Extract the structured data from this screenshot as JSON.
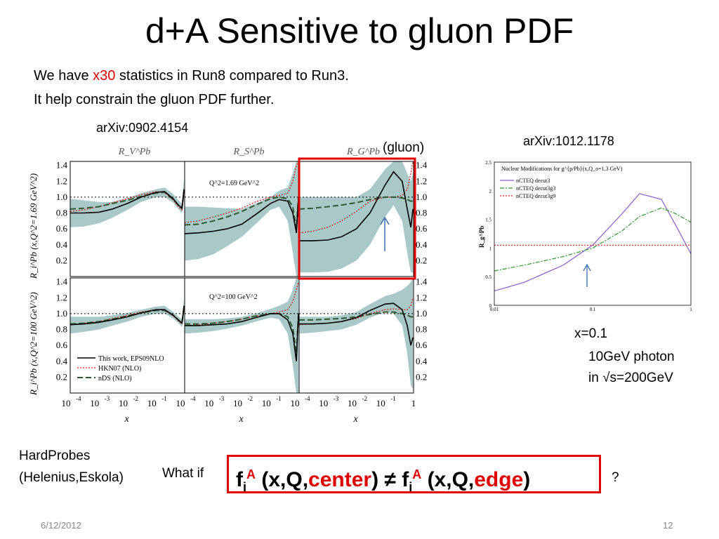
{
  "slide": {
    "title": "d+A Sensitive to gluon PDF",
    "line1_pre": "We have ",
    "line1_red": "x30",
    "line1_post": " statistics in Run8 compared to Run3.",
    "line2": "It help constrain the gluon PDF further.",
    "ref_left": "arXiv:0902.4154",
    "ref_right": "arXiv:1012.1178",
    "gluon_label": "(gluon)",
    "x_label": "x=0.1",
    "photon_line1": "10GeV photon",
    "photon_line2": "in √s=200GeV",
    "hardprobes1": "HardProbes",
    "hardprobes2": "(Helenius,Eskola)",
    "what_if": "What if",
    "question": "?",
    "formula": {
      "f": "f",
      "sub": "i",
      "sup": "A",
      "open": " (x,Q,",
      "center": "center",
      "close": ")",
      "neq": " ≠ ",
      "open2": " (x,Q,",
      "edge": "edge",
      "close2": ")"
    },
    "date": "6/12/2012",
    "page": "12"
  },
  "colors": {
    "accent_red": "#e00000",
    "band": "#a9c9c9",
    "arrow": "#3b6fb0"
  },
  "chart_data": [
    {
      "type": "line",
      "panel_titles": [
        "R_V^Pb",
        "R_S^Pb",
        "R_G^Pb"
      ],
      "row_ylabels": [
        "R_i^Pb (x,Q^2=1.69 GeV^2)",
        "R_i^Pb (x,Q^2=100 GeV^2)"
      ],
      "row_annotations": [
        "Q^2=1.69 GeV^2",
        "Q^2=100 GeV^2"
      ],
      "xlabel": "x",
      "x_scale": "log",
      "xlim": [
        0.0001,
        1
      ],
      "ylim": [
        0,
        1.45
      ],
      "y_ticks": [
        "1.4",
        "1.2",
        "1.0",
        "0.8",
        "0.6",
        "0.4",
        "0.2"
      ],
      "x_ticks_exp": [
        "-4",
        "-3",
        "-2",
        "-1"
      ],
      "x_last_tick": "1",
      "tick_base": "10",
      "legend": [
        "This work, EPS09NLO",
        "HKN07 (NLO)",
        "nDS (NLO)"
      ],
      "legend_position": "bottom-left",
      "x": [
        0.0001,
        0.0003,
        0.001,
        0.003,
        0.01,
        0.03,
        0.1,
        0.2,
        0.4,
        0.6,
        0.8,
        0.95
      ],
      "panels": [
        {
          "name": "V 1.69",
          "eps": [
            0.8,
            0.8,
            0.81,
            0.85,
            0.92,
            1.0,
            1.06,
            1.07,
            0.98,
            0.9,
            0.86,
            1.1
          ],
          "hkn": [
            0.82,
            0.84,
            0.88,
            0.93,
            0.98,
            1.03,
            1.07,
            1.06,
            0.96,
            0.88,
            0.84,
            1.05
          ],
          "nds": [
            0.85,
            0.86,
            0.88,
            0.92,
            0.96,
            1.01,
            1.05,
            1.06,
            0.97,
            0.9,
            0.86,
            1.08
          ],
          "band_lo": [
            0.62,
            0.63,
            0.67,
            0.74,
            0.84,
            0.94,
            1.0,
            1.0,
            0.93,
            0.85,
            0.8,
            0.95
          ],
          "band_hi": [
            0.98,
            0.96,
            0.94,
            0.94,
            0.99,
            1.05,
            1.1,
            1.12,
            1.04,
            0.96,
            0.92,
            1.25
          ]
        },
        {
          "name": "S 1.69",
          "eps": [
            0.54,
            0.55,
            0.57,
            0.6,
            0.66,
            0.78,
            0.92,
            0.97,
            0.95,
            0.8,
            0.55,
            1.0
          ],
          "hkn": [
            0.68,
            0.7,
            0.75,
            0.8,
            0.86,
            0.94,
            1.0,
            1.02,
            1.05,
            1.2,
            1.4,
            1.45
          ],
          "nds": [
            0.65,
            0.66,
            0.7,
            0.75,
            0.82,
            0.9,
            0.98,
            1.0,
            0.98,
            0.88,
            0.6,
            1.0
          ],
          "band_lo": [
            0.2,
            0.22,
            0.28,
            0.38,
            0.5,
            0.66,
            0.84,
            0.88,
            0.7,
            0.3,
            0.0,
            0.0
          ],
          "band_hi": [
            0.88,
            0.88,
            0.87,
            0.86,
            0.85,
            0.92,
            1.0,
            1.08,
            1.12,
            1.3,
            1.45,
            1.45
          ]
        },
        {
          "name": "G 1.69",
          "eps": [
            0.45,
            0.45,
            0.46,
            0.5,
            0.6,
            0.8,
            1.15,
            1.32,
            1.2,
            0.85,
            0.62,
            0.85
          ],
          "hkn": [
            0.55,
            0.57,
            0.62,
            0.7,
            0.82,
            0.95,
            1.0,
            1.0,
            1.02,
            1.1,
            1.3,
            1.45
          ],
          "nds": [
            0.85,
            0.86,
            0.88,
            0.9,
            0.93,
            0.97,
            1.0,
            1.0,
            0.99,
            0.97,
            0.95,
            0.95
          ],
          "band_lo": [
            0.05,
            0.05,
            0.06,
            0.1,
            0.2,
            0.4,
            0.75,
            0.9,
            0.7,
            0.3,
            0.05,
            0.05
          ],
          "band_hi": [
            1.0,
            1.0,
            1.0,
            1.0,
            1.0,
            1.1,
            1.35,
            1.45,
            1.45,
            1.3,
            1.2,
            1.3
          ]
        },
        {
          "name": "V 100",
          "eps": [
            0.86,
            0.87,
            0.89,
            0.92,
            0.96,
            1.01,
            1.05,
            1.05,
            0.98,
            0.92,
            0.88,
            1.1
          ],
          "hkn": [
            0.86,
            0.88,
            0.9,
            0.94,
            0.98,
            1.02,
            1.05,
            1.04,
            0.97,
            0.91,
            0.87,
            1.05
          ],
          "nds": [
            0.87,
            0.88,
            0.9,
            0.93,
            0.97,
            1.01,
            1.04,
            1.04,
            0.98,
            0.92,
            0.88,
            1.08
          ],
          "band_lo": [
            0.75,
            0.77,
            0.8,
            0.85,
            0.9,
            0.96,
            1.0,
            1.0,
            0.94,
            0.88,
            0.83,
            0.95
          ],
          "band_hi": [
            0.96,
            0.96,
            0.96,
            0.98,
            1.01,
            1.05,
            1.09,
            1.1,
            1.02,
            0.96,
            0.93,
            1.2
          ]
        },
        {
          "name": "S 100",
          "eps": [
            0.85,
            0.85,
            0.86,
            0.87,
            0.9,
            0.95,
            1.0,
            1.0,
            0.92,
            0.75,
            0.4,
            1.0
          ],
          "hkn": [
            0.85,
            0.86,
            0.88,
            0.9,
            0.93,
            0.97,
            1.0,
            1.02,
            1.05,
            1.15,
            1.3,
            1.4
          ],
          "nds": [
            0.87,
            0.87,
            0.88,
            0.9,
            0.93,
            0.97,
            1.0,
            1.0,
            0.96,
            0.82,
            0.5,
            1.0
          ],
          "band_lo": [
            0.75,
            0.76,
            0.78,
            0.81,
            0.85,
            0.9,
            0.95,
            0.93,
            0.75,
            0.35,
            0.0,
            0.0
          ],
          "band_hi": [
            0.93,
            0.93,
            0.93,
            0.94,
            0.96,
            1.0,
            1.06,
            1.1,
            1.15,
            1.3,
            1.45,
            1.45
          ]
        },
        {
          "name": "G 100",
          "eps": [
            0.87,
            0.87,
            0.88,
            0.9,
            0.95,
            1.04,
            1.12,
            1.13,
            1.05,
            0.85,
            0.6,
            0.7
          ],
          "hkn": [
            0.86,
            0.87,
            0.88,
            0.9,
            0.94,
            1.0,
            1.05,
            1.06,
            1.05,
            1.05,
            1.1,
            1.2
          ],
          "nds": [
            0.92,
            0.92,
            0.93,
            0.94,
            0.96,
            0.99,
            1.02,
            1.02,
            1.0,
            0.98,
            0.96,
            0.96
          ],
          "band_lo": [
            0.75,
            0.76,
            0.78,
            0.8,
            0.86,
            0.95,
            1.02,
            1.0,
            0.85,
            0.5,
            0.1,
            0.05
          ],
          "band_hi": [
            0.96,
            0.96,
            0.96,
            0.98,
            1.02,
            1.12,
            1.22,
            1.25,
            1.3,
            1.35,
            1.4,
            1.45
          ]
        }
      ]
    },
    {
      "type": "line",
      "title": "Nuclear Modifications for g^{p/Pb}(x,Q_o=1.3 GeV)",
      "xlabel": "x",
      "ylabel": "R_g^Pb",
      "x_scale": "log",
      "xlim": [
        0.01,
        1
      ],
      "ylim": [
        0,
        2.5
      ],
      "y_ticks": [
        "2.5",
        "2",
        "1.5",
        "1",
        "0.5",
        "0"
      ],
      "x_ticks": [
        "0.01",
        "0.1",
        "1"
      ],
      "legend": [
        "nCTEQ decut3",
        "nCTEQ decut3g3",
        "nCTEQ decut3g9"
      ],
      "legend_position": "top-left",
      "x": [
        0.01,
        0.02,
        0.05,
        0.1,
        0.2,
        0.3,
        0.5,
        0.7,
        1.0
      ],
      "series": [
        {
          "name": "nCTEQ decut3",
          "values": [
            0.25,
            0.4,
            0.7,
            1.05,
            1.6,
            1.95,
            1.85,
            1.4,
            0.9
          ]
        },
        {
          "name": "nCTEQ decut3g3",
          "values": [
            0.6,
            0.7,
            0.85,
            1.0,
            1.3,
            1.55,
            1.7,
            1.6,
            1.45
          ]
        },
        {
          "name": "nCTEQ decut3g9",
          "values": [
            1.05,
            1.05,
            1.05,
            1.05,
            1.05,
            1.05,
            1.05,
            1.05,
            1.05
          ]
        }
      ]
    }
  ]
}
